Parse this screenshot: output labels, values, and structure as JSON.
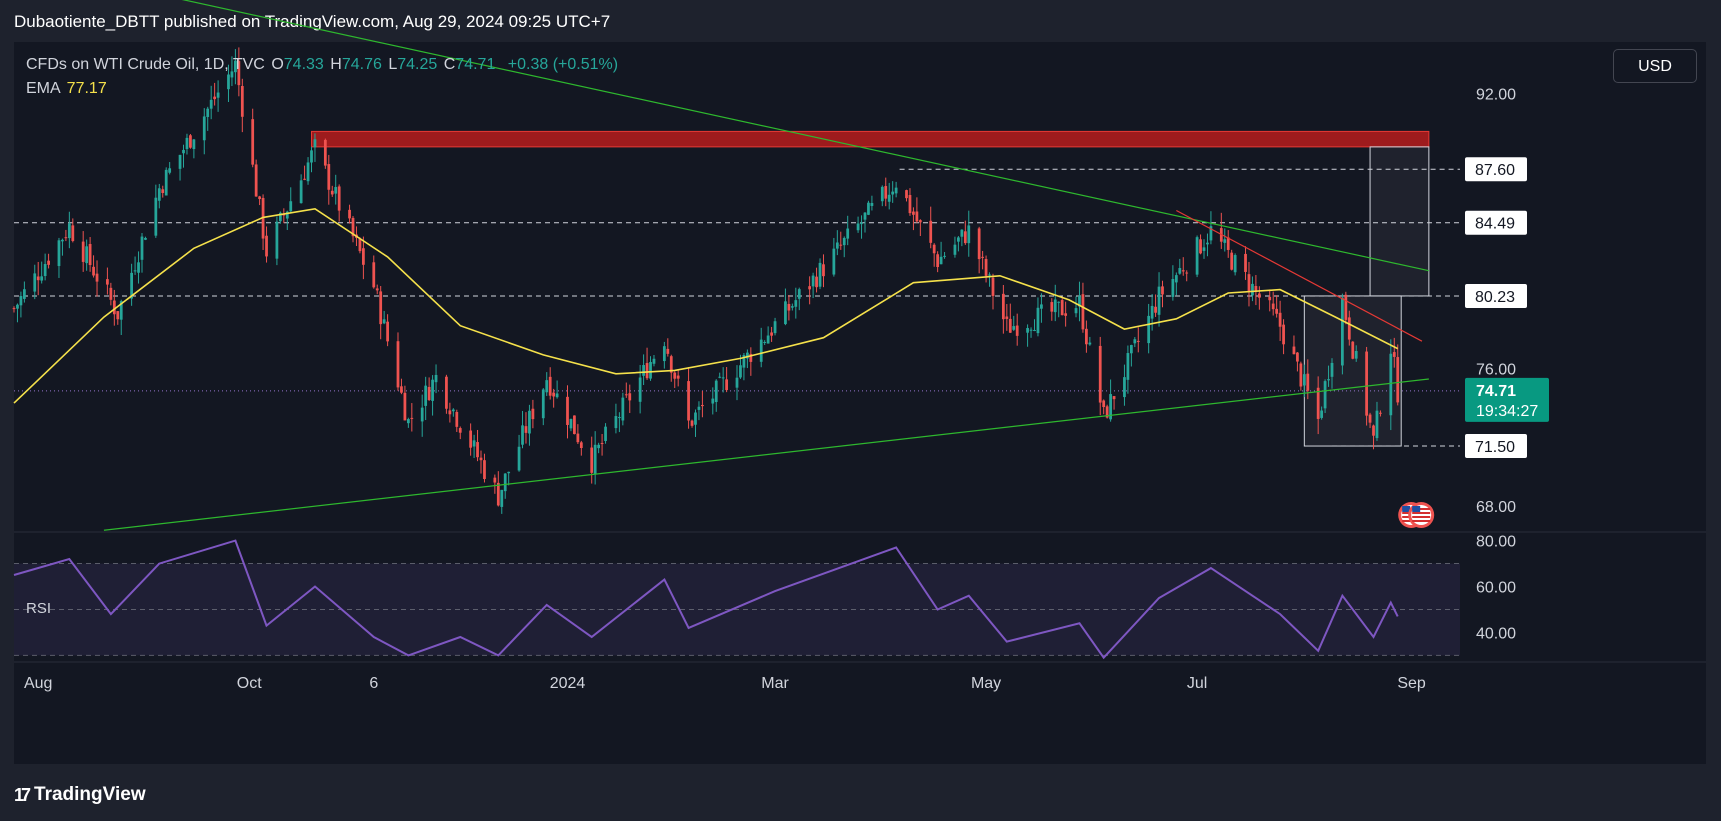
{
  "header": {
    "published": "Dubaotiente_DBTT published on TradingView.com, Aug 29, 2024 09:25 UTC+7"
  },
  "legend": {
    "symbol": "CFDs on WTI Crude Oil, 1D, TVC",
    "o_label": "O",
    "o_value": "74.33",
    "h_label": "H",
    "h_value": "74.76",
    "l_label": "L",
    "l_value": "74.25",
    "c_label": "C",
    "c_value": "74.71",
    "change": "+0.38 (+0.51%)",
    "ema_label": "EMA",
    "ema_value": "77.17"
  },
  "currency_button": "USD",
  "rsi_label": "RSI",
  "footer": {
    "logo_mark": "17",
    "logo_text": "TradingView"
  },
  "colors": {
    "background": "#131722",
    "up": "#26a69a",
    "down": "#ef5350",
    "ema": "#f5e14b",
    "trendline": "#2eb82e",
    "resistance_zone": "#b71c1c",
    "rsi_line": "#7e57c2",
    "price_badge": "#089981"
  },
  "chart_data": {
    "type": "candlestick",
    "title": "CFDs on WTI Crude Oil, 1D, TVC",
    "y_axis": {
      "min": 66.5,
      "max": 95.0,
      "ticks": [
        68.0,
        76.0,
        92.0
      ]
    },
    "x_axis": {
      "start": "2023-07-25",
      "end": "2024-09-15",
      "tick_labels": [
        {
          "label": "Aug",
          "date": "2023-08-01"
        },
        {
          "label": "Oct",
          "date": "2023-10-01"
        },
        {
          "label": "6",
          "date": "2023-11-06"
        },
        {
          "label": "2024",
          "date": "2024-01-01"
        },
        {
          "label": "Mar",
          "date": "2024-03-01"
        },
        {
          "label": "May",
          "date": "2024-05-01"
        },
        {
          "label": "Jul",
          "date": "2024-07-01"
        },
        {
          "label": "Sep",
          "date": "2024-09-01"
        }
      ]
    },
    "anchors": [
      {
        "date": "2023-07-25",
        "close": 79.5
      },
      {
        "date": "2023-08-10",
        "close": 84.3
      },
      {
        "date": "2023-08-24",
        "close": 79.2
      },
      {
        "date": "2023-09-05",
        "close": 86.5
      },
      {
        "date": "2023-09-27",
        "close": 93.7
      },
      {
        "date": "2023-10-06",
        "close": 82.8
      },
      {
        "date": "2023-10-20",
        "close": 88.8
      },
      {
        "date": "2023-11-06",
        "close": 80.8
      },
      {
        "date": "2023-11-16",
        "close": 72.9
      },
      {
        "date": "2023-11-24",
        "close": 75.5
      },
      {
        "date": "2023-12-12",
        "close": 68.6
      },
      {
        "date": "2023-12-26",
        "close": 75.5
      },
      {
        "date": "2024-01-08",
        "close": 70.6
      },
      {
        "date": "2024-01-29",
        "close": 77.8
      },
      {
        "date": "2024-02-05",
        "close": 72.8
      },
      {
        "date": "2024-02-29",
        "close": 78.3
      },
      {
        "date": "2024-04-05",
        "close": 86.9
      },
      {
        "date": "2024-04-17",
        "close": 82.3
      },
      {
        "date": "2024-04-26",
        "close": 84.0
      },
      {
        "date": "2024-05-07",
        "close": 78.4
      },
      {
        "date": "2024-05-28",
        "close": 79.8
      },
      {
        "date": "2024-06-04",
        "close": 73.2
      },
      {
        "date": "2024-06-20",
        "close": 80.2
      },
      {
        "date": "2024-07-05",
        "close": 84.0
      },
      {
        "date": "2024-07-25",
        "close": 78.5
      },
      {
        "date": "2024-08-05",
        "close": 73.0
      },
      {
        "date": "2024-08-12",
        "close": 80.0
      },
      {
        "date": "2024-08-21",
        "close": 71.8
      },
      {
        "date": "2024-08-26",
        "close": 77.3
      },
      {
        "date": "2024-08-28",
        "close": 74.7
      }
    ],
    "ema": {
      "period_label": "EMA",
      "points": [
        {
          "date": "2023-07-25",
          "value": 74.0
        },
        {
          "date": "2023-08-20",
          "value": 79.0
        },
        {
          "date": "2023-09-15",
          "value": 83.0
        },
        {
          "date": "2023-10-05",
          "value": 84.8
        },
        {
          "date": "2023-10-20",
          "value": 85.3
        },
        {
          "date": "2023-11-10",
          "value": 82.5
        },
        {
          "date": "2023-12-01",
          "value": 78.5
        },
        {
          "date": "2023-12-25",
          "value": 76.8
        },
        {
          "date": "2024-01-15",
          "value": 75.7
        },
        {
          "date": "2024-02-01",
          "value": 75.9
        },
        {
          "date": "2024-02-20",
          "value": 76.6
        },
        {
          "date": "2024-03-15",
          "value": 77.8
        },
        {
          "date": "2024-04-10",
          "value": 81.0
        },
        {
          "date": "2024-05-05",
          "value": 81.4
        },
        {
          "date": "2024-05-25",
          "value": 80.0
        },
        {
          "date": "2024-06-10",
          "value": 78.3
        },
        {
          "date": "2024-06-25",
          "value": 78.9
        },
        {
          "date": "2024-07-10",
          "value": 80.4
        },
        {
          "date": "2024-07-25",
          "value": 80.6
        },
        {
          "date": "2024-08-10",
          "value": 79.0
        },
        {
          "date": "2024-08-28",
          "value": 77.17
        }
      ]
    },
    "trendlines": [
      {
        "name": "descending",
        "color": "#2eb82e",
        "from": {
          "date": "2023-07-25",
          "price": 99.6
        },
        "to": {
          "date": "2024-09-06",
          "price": 81.7
        }
      },
      {
        "name": "ascending",
        "color": "#2eb82e",
        "from": {
          "date": "2023-08-20",
          "price": 66.6
        },
        "to": {
          "date": "2024-09-06",
          "price": 75.4
        }
      },
      {
        "name": "short-term-resistance",
        "color": "#e53935",
        "from": {
          "date": "2024-06-25",
          "price": 85.2
        },
        "to": {
          "date": "2024-09-04",
          "price": 77.6
        }
      }
    ],
    "resistance_zone": {
      "from_date": "2023-10-19",
      "to_date": "2024-09-06",
      "low": 88.9,
      "high": 89.8
    },
    "horizontal_levels": [
      {
        "price": 87.6,
        "label": "87.60",
        "from_date": "2024-04-06"
      },
      {
        "price": 84.49,
        "label": "84.49",
        "from_date": "2023-07-25"
      },
      {
        "price": 80.23,
        "label": "80.23",
        "from_date": "2023-07-25"
      },
      {
        "price": 71.5,
        "label": "71.50",
        "from_date": "2024-08-09"
      }
    ],
    "boxes": [
      {
        "from_date": "2024-08-20",
        "to_date": "2024-09-06",
        "low": 80.23,
        "high": 88.9
      },
      {
        "from_date": "2024-08-01",
        "to_date": "2024-08-29",
        "low": 71.5,
        "high": 80.23
      }
    ],
    "last_price": {
      "value": 74.71,
      "label": "74.71",
      "countdown": "19:34:27"
    },
    "rsi": {
      "y_ticks": [
        {
          "value": 80,
          "label": "80.00"
        },
        {
          "value": 60,
          "label": "60.00"
        },
        {
          "value": 40,
          "label": "40.00"
        }
      ],
      "band": [
        30,
        70
      ],
      "mid": 50,
      "range": [
        28,
        82
      ],
      "points": [
        {
          "date": "2023-07-25",
          "value": 65
        },
        {
          "date": "2023-08-10",
          "value": 72
        },
        {
          "date": "2023-08-22",
          "value": 48
        },
        {
          "date": "2023-09-05",
          "value": 70
        },
        {
          "date": "2023-09-27",
          "value": 80
        },
        {
          "date": "2023-10-06",
          "value": 43
        },
        {
          "date": "2023-10-20",
          "value": 60
        },
        {
          "date": "2023-11-06",
          "value": 38
        },
        {
          "date": "2023-11-16",
          "value": 30
        },
        {
          "date": "2023-12-01",
          "value": 38
        },
        {
          "date": "2023-12-12",
          "value": 30
        },
        {
          "date": "2023-12-26",
          "value": 52
        },
        {
          "date": "2024-01-08",
          "value": 38
        },
        {
          "date": "2024-01-29",
          "value": 63
        },
        {
          "date": "2024-02-05",
          "value": 42
        },
        {
          "date": "2024-03-01",
          "value": 58
        },
        {
          "date": "2024-04-05",
          "value": 77
        },
        {
          "date": "2024-04-17",
          "value": 50
        },
        {
          "date": "2024-04-26",
          "value": 56
        },
        {
          "date": "2024-05-07",
          "value": 36
        },
        {
          "date": "2024-05-28",
          "value": 44
        },
        {
          "date": "2024-06-04",
          "value": 29
        },
        {
          "date": "2024-06-20",
          "value": 55
        },
        {
          "date": "2024-07-05",
          "value": 68
        },
        {
          "date": "2024-07-25",
          "value": 48
        },
        {
          "date": "2024-08-05",
          "value": 32
        },
        {
          "date": "2024-08-12",
          "value": 56
        },
        {
          "date": "2024-08-21",
          "value": 38
        },
        {
          "date": "2024-08-26",
          "value": 53
        },
        {
          "date": "2024-08-28",
          "value": 47
        }
      ]
    }
  }
}
